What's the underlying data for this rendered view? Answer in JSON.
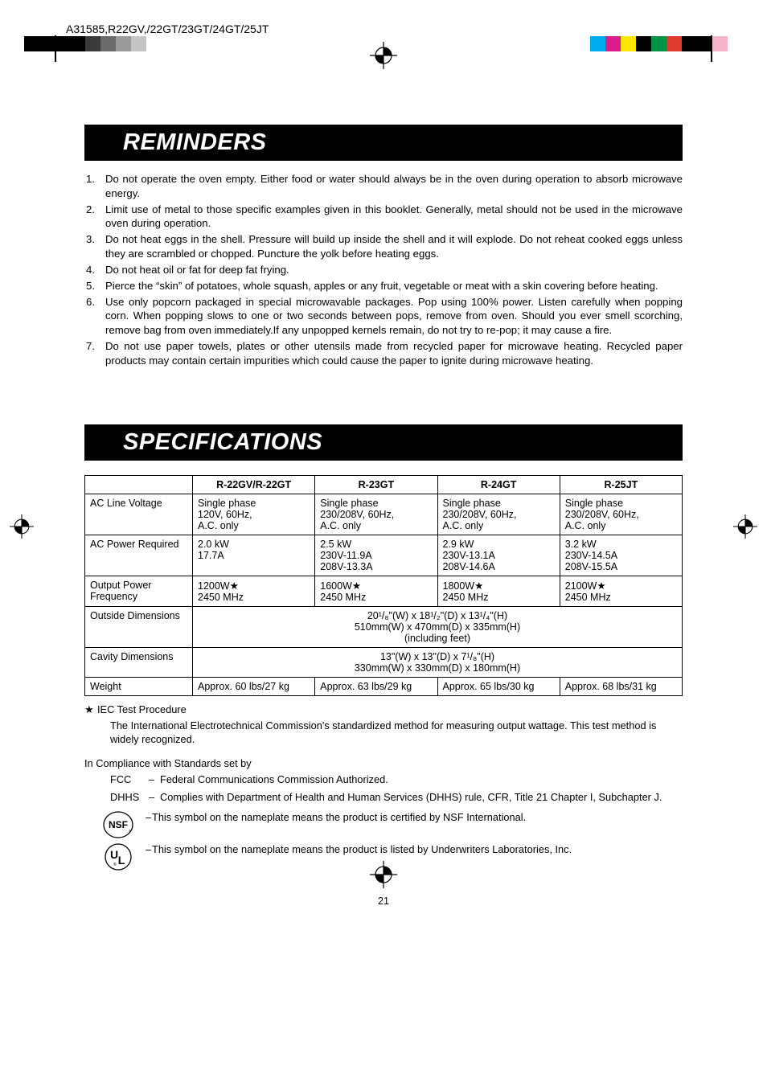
{
  "header": {
    "doc_id": "A31585,R22GV,/22GT/23GT/24GT/25JT",
    "swatches_left": [
      "#000000",
      "#000000",
      "#000000",
      "#000000",
      "#3a3a3a",
      "#6a6a6a",
      "#9a9a9a",
      "#c5c5c5",
      "#ffffff",
      "#ffffff"
    ],
    "swatches_right": [
      "#00aeef",
      "#d91e8b",
      "#ffe600",
      "#000000",
      "#009245",
      "#e03a2e",
      "#000000",
      "#000000",
      "#f7b5c9",
      "#ffffff"
    ]
  },
  "sections": {
    "reminders": {
      "title": "REMINDERS",
      "items": [
        "Do not operate the oven empty. Either food or water should always be in the oven during operation to absorb microwave energy.",
        "Limit use of metal to those specific examples given in this booklet. Generally, metal should not be used in the microwave oven during operation.",
        "Do not heat eggs in the shell. Pressure will build up inside the shell and it will explode. Do not reheat cooked eggs unless they are scrambled or chopped. Puncture the yolk before heating eggs.",
        "Do not heat oil or fat for deep fat frying.",
        "Pierce the “skin” of potatoes, whole squash, apples or any fruit, vegetable or meat with a skin covering before heating.",
        "Use only popcorn packaged in special microwavable packages. Pop using 100% power. Listen carefully when popping corn. When popping slows to one or two seconds between pops, remove from oven. Should you ever smell scorching, remove bag from oven immediately.If any unpopped kernels remain, do not try to re-pop; it may cause a fire.",
        "Do not use paper towels, plates or other utensils made from recycled paper for microwave heating. Recycled paper products may contain certain impurities which could cause the paper to ignite during microwave heating."
      ]
    },
    "specifications": {
      "title": "SPECIFICATIONS",
      "columns": [
        "",
        "R-22GV/R-22GT",
        "R-23GT",
        "R-24GT",
        "R-25JT"
      ],
      "rows": {
        "ac_line": {
          "label": "AC Line Voltage",
          "cells": [
            "Single phase\n120V, 60Hz,\nA.C. only",
            "Single phase\n230/208V, 60Hz,\nA.C. only",
            "Single phase\n230/208V, 60Hz,\nA.C. only",
            "Single phase\n230/208V, 60Hz,\nA.C. only"
          ]
        },
        "ac_power": {
          "label": "AC Power Required",
          "cells": [
            "2.0 kW\n17.7A",
            "2.5 kW\n230V-11.9A\n208V-13.3A",
            "2.9 kW\n230V-13.1A\n208V-14.6A",
            "3.2 kW\n230V-14.5A\n208V-15.5A"
          ]
        },
        "output": {
          "label": "Output Power\nFrequency",
          "cells": [
            "1200W★\n2450 MHz",
            "1600W★\n2450 MHz",
            "1800W★\n2450 MHz",
            "2100W★\n2450 MHz"
          ]
        },
        "outside": {
          "label": "Outside Dimensions",
          "full": "20¹/₈\"(W) x 18¹/₂\"(D) x 13¹/₄\"(H)\n510mm(W) x 470mm(D) x 335mm(H)\n(including feet)"
        },
        "cavity": {
          "label": "Cavity Dimensions",
          "full": "13\"(W) x 13\"(D) x 7¹/₈\"(H)\n330mm(W) x 330mm(D) x 180mm(H)"
        },
        "weight": {
          "label": "Weight",
          "cells": [
            "Approx. 60 lbs/27 kg",
            "Approx. 63 lbs/29 kg",
            "Approx. 65 lbs/30 kg",
            "Approx. 68 lbs/31 kg"
          ]
        }
      },
      "footnote_star": "★",
      "footnote_star_label": "IEC Test Procedure",
      "footnote_star_text": "The International Electrotechnical Commission's standardized method for measuring output wattage. This test method is widely recognized.",
      "compliance_header": "In Compliance with Standards set by",
      "compliance": [
        {
          "label": "FCC",
          "dash": "–",
          "text": "Federal Communications Commission Authorized."
        },
        {
          "label": "DHHS",
          "dash": "–",
          "text": "Complies with Department of Health and Human Services (DHHS) rule, CFR, Title 21 Chapter I, Subchapter J."
        }
      ],
      "cert_icons": [
        {
          "name": "nsf-icon",
          "dash": "–",
          "text": "This symbol on the nameplate means the product is certified by NSF International."
        },
        {
          "name": "ul-icon",
          "dash": "–",
          "text": "This symbol on the nameplate means the product is listed by Underwriters Laboratories, Inc."
        }
      ]
    }
  },
  "page_number": "21"
}
